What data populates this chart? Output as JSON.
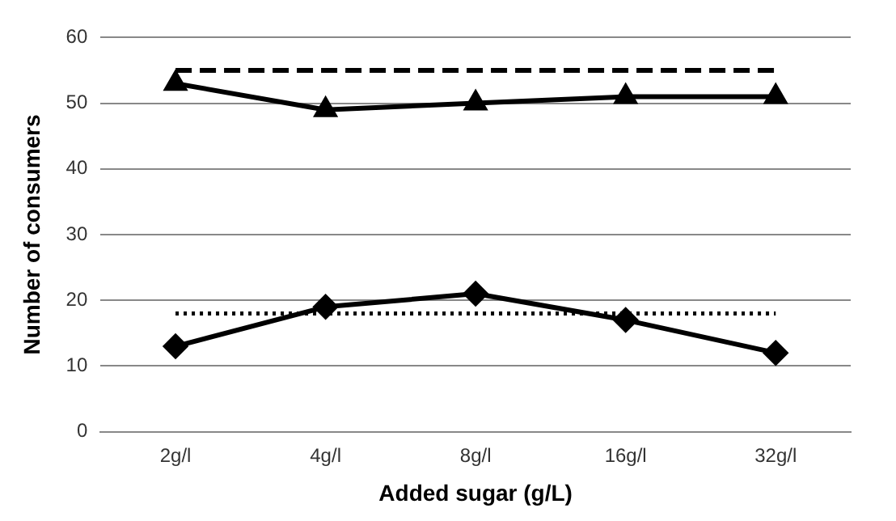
{
  "chart_data": {
    "type": "line",
    "xlabel": "Added sugar (g/L)",
    "ylabel": "Number of consumers",
    "categories": [
      "2g/l",
      "4g/l",
      "8g/l",
      "16g/l",
      "32g/l"
    ],
    "series": [
      {
        "color": "#000000",
        "values": [
          53,
          49,
          50,
          51,
          51
        ],
        "marker": "triangle"
      },
      {
        "color": "#000000",
        "values": [
          13,
          19,
          21,
          17,
          12
        ],
        "marker": "diamond"
      }
    ],
    "ylim": [
      0,
      60
    ],
    "yticks": [
      0,
      10,
      20,
      30,
      40,
      50,
      60
    ],
    "grid": "y",
    "legend": false,
    "line_style": "solid",
    "ref_lines": [
      {
        "axis": "y",
        "value": 55,
        "color": "#000000",
        "line_style": "dashed"
      },
      {
        "axis": "y",
        "value": 18,
        "color": "#000000",
        "line_style": "dotted"
      }
    ]
  }
}
